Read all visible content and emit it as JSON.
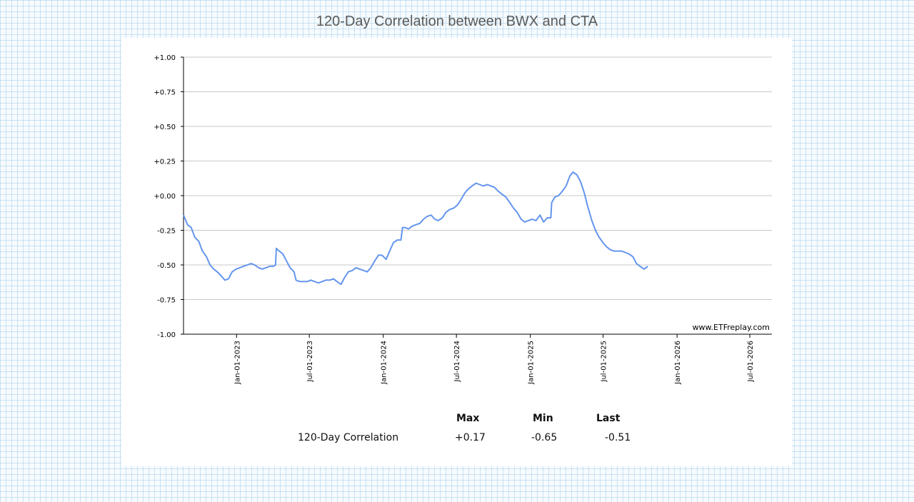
{
  "page": {
    "title": "120-Day Correlation between BWX and CTA"
  },
  "chart_data": {
    "type": "line",
    "title": "120-Day Correlation between BWX and CTA",
    "xlabel": "",
    "ylabel": "",
    "ylim": [
      -1.0,
      1.0
    ],
    "yticks": [
      -1.0,
      -0.75,
      -0.5,
      -0.25,
      0.0,
      0.25,
      0.5,
      0.75,
      1.0
    ],
    "ytick_labels": [
      "-1.00",
      "-0.75",
      "-0.50",
      "-0.25",
      "+0.00",
      "+0.25",
      "+0.50",
      "+0.75",
      "+1.00"
    ],
    "xlim": [
      "2022-08-22",
      "2026-08-25"
    ],
    "xticks": [
      "2023-01-01",
      "2023-07-01",
      "2024-01-01",
      "2024-07-01",
      "2025-01-01",
      "2025-07-01",
      "2026-01-01",
      "2026-07-01"
    ],
    "xtick_labels": [
      "Jan-01-2023",
      "Jul-01-2023",
      "Jan-01-2024",
      "Jul-01-2024",
      "Jan-01-2025",
      "Jul-01-2025",
      "Jan-01-2026",
      "Jul-01-2026"
    ],
    "grid": "horizontal",
    "line_color": "#6495ed",
    "watermark": "www.ETFreplay.com",
    "series": [
      {
        "name": "120-Day Correlation",
        "points": [
          [
            "2022-08-22",
            -0.14
          ],
          [
            "2022-09-01",
            -0.21
          ],
          [
            "2022-09-10",
            -0.23
          ],
          [
            "2022-09-19",
            -0.3
          ],
          [
            "2022-09-29",
            -0.33
          ],
          [
            "2022-10-08",
            -0.4
          ],
          [
            "2022-10-18",
            -0.44
          ],
          [
            "2022-10-27",
            -0.5
          ],
          [
            "2022-11-05",
            -0.53
          ],
          [
            "2022-11-14",
            -0.55
          ],
          [
            "2022-11-24",
            -0.58
          ],
          [
            "2022-12-03",
            -0.61
          ],
          [
            "2022-12-12",
            -0.6
          ],
          [
            "2022-12-21",
            -0.55
          ],
          [
            "2022-12-31",
            -0.53
          ],
          [
            "2023-01-09",
            -0.52
          ],
          [
            "2023-01-18",
            -0.51
          ],
          [
            "2023-01-28",
            -0.5
          ],
          [
            "2023-02-06",
            -0.49
          ],
          [
            "2023-02-15",
            -0.5
          ],
          [
            "2023-02-25",
            -0.52
          ],
          [
            "2023-03-06",
            -0.53
          ],
          [
            "2023-03-15",
            -0.52
          ],
          [
            "2023-03-25",
            -0.51
          ],
          [
            "2023-04-03",
            -0.51
          ],
          [
            "2023-04-08",
            -0.5
          ],
          [
            "2023-04-10",
            -0.38
          ],
          [
            "2023-04-17",
            -0.4
          ],
          [
            "2023-04-26",
            -0.42
          ],
          [
            "2023-05-05",
            -0.47
          ],
          [
            "2023-05-14",
            -0.52
          ],
          [
            "2023-05-24",
            -0.55
          ],
          [
            "2023-05-29",
            -0.61
          ],
          [
            "2023-06-07",
            -0.62
          ],
          [
            "2023-06-16",
            -0.62
          ],
          [
            "2023-06-26",
            -0.62
          ],
          [
            "2023-07-05",
            -0.61
          ],
          [
            "2023-07-14",
            -0.62
          ],
          [
            "2023-07-24",
            -0.63
          ],
          [
            "2023-08-02",
            -0.62
          ],
          [
            "2023-08-11",
            -0.61
          ],
          [
            "2023-08-21",
            -0.61
          ],
          [
            "2023-08-30",
            -0.6
          ],
          [
            "2023-09-08",
            -0.62
          ],
          [
            "2023-09-18",
            -0.64
          ],
          [
            "2023-09-27",
            -0.59
          ],
          [
            "2023-10-06",
            -0.55
          ],
          [
            "2023-10-16",
            -0.54
          ],
          [
            "2023-10-25",
            -0.52
          ],
          [
            "2023-11-03",
            -0.53
          ],
          [
            "2023-11-13",
            -0.54
          ],
          [
            "2023-11-22",
            -0.55
          ],
          [
            "2023-12-01",
            -0.52
          ],
          [
            "2023-12-11",
            -0.47
          ],
          [
            "2023-12-20",
            -0.43
          ],
          [
            "2023-12-29",
            -0.43
          ],
          [
            "2024-01-08",
            -0.46
          ],
          [
            "2024-01-17",
            -0.4
          ],
          [
            "2024-01-26",
            -0.34
          ],
          [
            "2024-02-05",
            -0.32
          ],
          [
            "2024-02-14",
            -0.32
          ],
          [
            "2024-02-18",
            -0.23
          ],
          [
            "2024-02-23",
            -0.23
          ],
          [
            "2024-03-04",
            -0.24
          ],
          [
            "2024-03-13",
            -0.22
          ],
          [
            "2024-03-22",
            -0.21
          ],
          [
            "2024-04-01",
            -0.2
          ],
          [
            "2024-04-10",
            -0.17
          ],
          [
            "2024-04-19",
            -0.15
          ],
          [
            "2024-04-29",
            -0.14
          ],
          [
            "2024-05-08",
            -0.17
          ],
          [
            "2024-05-17",
            -0.18
          ],
          [
            "2024-05-27",
            -0.16
          ],
          [
            "2024-06-05",
            -0.12
          ],
          [
            "2024-06-14",
            -0.1
          ],
          [
            "2024-06-24",
            -0.09
          ],
          [
            "2024-07-03",
            -0.07
          ],
          [
            "2024-07-12",
            -0.03
          ],
          [
            "2024-07-22",
            0.02
          ],
          [
            "2024-07-31",
            0.05
          ],
          [
            "2024-08-09",
            0.07
          ],
          [
            "2024-08-19",
            0.09
          ],
          [
            "2024-08-28",
            0.08
          ],
          [
            "2024-09-06",
            0.07
          ],
          [
            "2024-09-16",
            0.08
          ],
          [
            "2024-09-25",
            0.07
          ],
          [
            "2024-10-04",
            0.06
          ],
          [
            "2024-10-14",
            0.03
          ],
          [
            "2024-10-23",
            0.01
          ],
          [
            "2024-11-01",
            -0.01
          ],
          [
            "2024-11-11",
            -0.05
          ],
          [
            "2024-11-20",
            -0.09
          ],
          [
            "2024-11-29",
            -0.12
          ],
          [
            "2024-12-09",
            -0.17
          ],
          [
            "2024-12-18",
            -0.19
          ],
          [
            "2024-12-27",
            -0.18
          ],
          [
            "2025-01-06",
            -0.17
          ],
          [
            "2025-01-15",
            -0.18
          ],
          [
            "2025-01-25",
            -0.14
          ],
          [
            "2025-02-03",
            -0.19
          ],
          [
            "2025-02-12",
            -0.16
          ],
          [
            "2025-02-21",
            -0.16
          ],
          [
            "2025-02-23",
            -0.05
          ],
          [
            "2025-03-03",
            -0.01
          ],
          [
            "2025-03-12",
            0.0
          ],
          [
            "2025-03-21",
            0.03
          ],
          [
            "2025-03-31",
            0.07
          ],
          [
            "2025-04-09",
            0.14
          ],
          [
            "2025-04-17",
            0.17
          ],
          [
            "2025-04-27",
            0.15
          ],
          [
            "2025-05-06",
            0.1
          ],
          [
            "2025-05-15",
            0.02
          ],
          [
            "2025-05-24",
            -0.08
          ],
          [
            "2025-06-03",
            -0.18
          ],
          [
            "2025-06-12",
            -0.25
          ],
          [
            "2025-06-21",
            -0.3
          ],
          [
            "2025-07-01",
            -0.34
          ],
          [
            "2025-07-10",
            -0.37
          ],
          [
            "2025-07-19",
            -0.39
          ],
          [
            "2025-07-28",
            -0.4
          ],
          [
            "2025-08-07",
            -0.4
          ],
          [
            "2025-08-16",
            -0.4
          ],
          [
            "2025-08-25",
            -0.41
          ],
          [
            "2025-09-03",
            -0.42
          ],
          [
            "2025-09-13",
            -0.44
          ],
          [
            "2025-09-22",
            -0.49
          ],
          [
            "2025-10-01",
            -0.51
          ],
          [
            "2025-10-11",
            -0.53
          ],
          [
            "2025-10-20",
            -0.51
          ]
        ]
      }
    ]
  },
  "stats": {
    "headers": [
      "Max",
      "Min",
      "Last"
    ],
    "row_label": "120-Day Correlation",
    "values": [
      "+0.17",
      "-0.65",
      "-0.51"
    ]
  }
}
